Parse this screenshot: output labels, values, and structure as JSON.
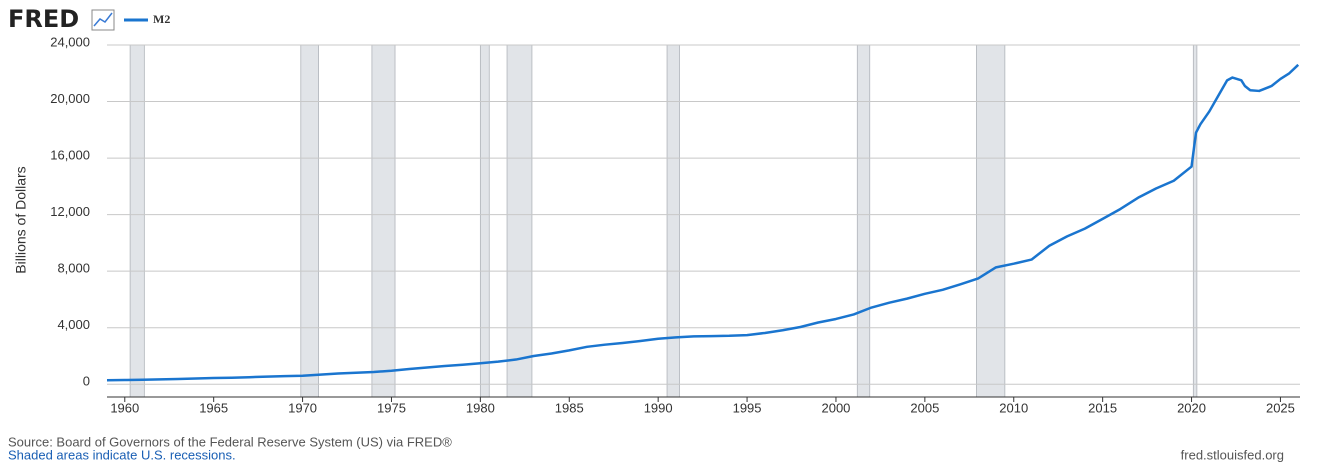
{
  "chart_data": {
    "type": "line",
    "logo": "FRED",
    "ylabel": "Billions of Dollars",
    "source": "Source: Board of Governors of the Federal Reserve System (US) via FRED®",
    "note": "Shaded areas indicate U.S. recessions.",
    "credit": "fred.stlouisfed.org",
    "x": [
      1959,
      1960,
      1961,
      1962,
      1963,
      1964,
      1965,
      1966,
      1967,
      1968,
      1969,
      1970,
      1971,
      1972,
      1973,
      1974,
      1975,
      1976,
      1977,
      1978,
      1979,
      1980,
      1981,
      1982,
      1983,
      1984,
      1985,
      1986,
      1987,
      1988,
      1989,
      1990,
      1991,
      1992,
      1993,
      1994,
      1995,
      1996,
      1997,
      1998,
      1999,
      2000,
      2001,
      2002,
      2003,
      2004,
      2005,
      2006,
      2007,
      2008,
      2009,
      2010,
      2011,
      2012,
      2013,
      2014,
      2015,
      2016,
      2017,
      2018,
      2019,
      2020,
      2020.25,
      2020.5,
      2021,
      2021.5,
      2022,
      2022.3,
      2022.8,
      2023,
      2023.3,
      2023.8,
      2024,
      2024.5,
      2025,
      2025.5,
      2026
    ],
    "series": [
      {
        "name": "M2",
        "color": "#1a75cf",
        "values": [
          287,
          300,
          320,
          345,
          375,
          405,
          440,
          465,
          500,
          545,
          580,
          600,
          680,
          760,
          820,
          870,
          960,
          1080,
          1190,
          1290,
          1380,
          1490,
          1600,
          1750,
          2000,
          2180,
          2400,
          2650,
          2800,
          2920,
          3060,
          3220,
          3320,
          3390,
          3410,
          3430,
          3480,
          3630,
          3820,
          4050,
          4370,
          4620,
          4940,
          5430,
          5770,
          6060,
          6400,
          6680,
          7070,
          7490,
          8270,
          8530,
          8820,
          9800,
          10460,
          11010,
          11700,
          12400,
          13200,
          13850,
          14400,
          15400,
          17800,
          18400,
          19300,
          20400,
          21500,
          21700,
          21500,
          21100,
          20800,
          20750,
          20850,
          21100,
          21600,
          22000,
          22600
        ]
      }
    ],
    "recessions": [
      [
        1960.3,
        1961.1
      ],
      [
        1969.9,
        1970.9
      ],
      [
        1973.9,
        1975.2
      ],
      [
        1980.0,
        1980.5
      ],
      [
        1981.5,
        1982.9
      ],
      [
        1990.5,
        1991.2
      ],
      [
        2001.2,
        2001.9
      ],
      [
        2007.9,
        2009.5
      ],
      [
        2020.1,
        2020.3
      ]
    ],
    "xlim": [
      1959,
      2026.1
    ],
    "ylim": [
      -900,
      24000
    ],
    "xticks": [
      1960,
      1965,
      1970,
      1975,
      1980,
      1985,
      1990,
      1995,
      2000,
      2005,
      2010,
      2015,
      2020,
      2025
    ],
    "yticks": [
      0,
      {
        "value": 4000,
        "label": "4,000"
      },
      {
        "value": 8000,
        "label": "8,000"
      },
      {
        "value": 12000,
        "label": "12,000"
      },
      {
        "value": 16000,
        "label": "16,000"
      },
      {
        "value": 20000,
        "label": "20,000"
      },
      {
        "value": 24000,
        "label": "24,000"
      }
    ],
    "grid": true
  }
}
